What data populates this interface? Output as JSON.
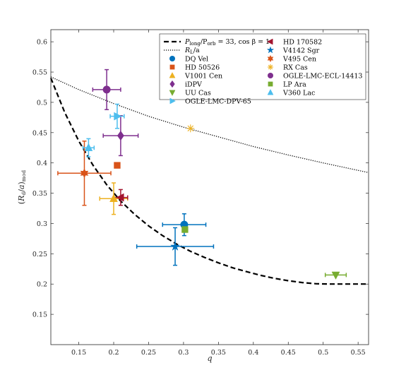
{
  "chart_data": {
    "type": "scatter",
    "xlabel": "q",
    "ylabel": "(R_d/a)_mod",
    "xlim": [
      0.11,
      0.565
    ],
    "ylim": [
      0.1,
      0.62
    ],
    "xticks": [
      0.15,
      0.2,
      0.25,
      0.3,
      0.35,
      0.4,
      0.45,
      0.5,
      0.55
    ],
    "yticks": [
      0.15,
      0.2,
      0.25,
      0.3,
      0.35,
      0.4,
      0.45,
      0.5,
      0.55,
      0.6
    ],
    "grid": false,
    "legend_position": "top-right",
    "curves": [
      {
        "name_main": "P",
        "name_sub1": "long",
        "name_mid": "/P",
        "name_sub2": "orb",
        "name_tail": " = 33, cos β = 1",
        "style": "dashed",
        "color": "#000000",
        "x": [
          0.11,
          0.13,
          0.15,
          0.17,
          0.19,
          0.21,
          0.23,
          0.25,
          0.27,
          0.29,
          0.31,
          0.33,
          0.35,
          0.37,
          0.39,
          0.41,
          0.43,
          0.45,
          0.47,
          0.49,
          0.51,
          0.53,
          0.55,
          0.565
        ],
        "y": [
          0.54,
          0.483,
          0.436,
          0.397,
          0.364,
          0.337,
          0.315,
          0.296,
          0.28,
          0.266,
          0.254,
          0.244,
          0.235,
          0.227,
          0.2205,
          0.2145,
          0.2095,
          0.2055,
          0.2025,
          0.2005,
          0.2,
          0.2,
          0.2,
          0.2
        ]
      },
      {
        "name_main": "R",
        "name_sub1": "L",
        "name_mid": "/a",
        "name_sub2": "",
        "name_tail": "",
        "style": "dotted",
        "color": "#000000",
        "x": [
          0.11,
          0.15,
          0.2,
          0.25,
          0.3,
          0.35,
          0.4,
          0.45,
          0.5,
          0.565
        ],
        "y": [
          0.542,
          0.521,
          0.498,
          0.477,
          0.459,
          0.443,
          0.427,
          0.413,
          0.4,
          0.384
        ]
      }
    ],
    "series": [
      {
        "name": "DQ Vel",
        "marker": "circle",
        "color": "#0072BD",
        "x": 0.301,
        "y": 0.298,
        "xerr": [
          0.031,
          0.031
        ],
        "yerr": [
          0.018,
          0.018
        ]
      },
      {
        "name": "HD 50526",
        "marker": "square",
        "color": "#D95319",
        "x": 0.205,
        "y": 0.396,
        "xerr": [
          0,
          0
        ],
        "yerr": [
          0,
          0
        ]
      },
      {
        "name": "V1001 Cen",
        "marker": "triangle-up",
        "color": "#EDB120",
        "x": 0.2,
        "y": 0.341,
        "xerr": [
          0.02,
          0.02
        ],
        "yerr": [
          0.026,
          0.026
        ]
      },
      {
        "name": "iDPV",
        "marker": "diamond",
        "color": "#7E2F8E",
        "x": 0.21,
        "y": 0.445,
        "xerr": [
          0.025,
          0.025
        ],
        "yerr": [
          0.033,
          0.033
        ]
      },
      {
        "name": "UU Cas",
        "marker": "triangle-down",
        "color": "#77AC30",
        "x": 0.518,
        "y": 0.215,
        "xerr": [
          0.015,
          0.015
        ],
        "yerr": [
          0,
          0
        ]
      },
      {
        "name": "OGLE-LMC-DPV-65",
        "marker": "triangle-right",
        "color": "#4DBEEE",
        "x": 0.205,
        "y": 0.477,
        "xerr": [
          0.01,
          0.01
        ],
        "yerr": [
          0.02,
          0.02
        ]
      },
      {
        "name": "HD 170582",
        "marker": "triangle-left",
        "color": "#A2142F",
        "x": 0.21,
        "y": 0.343,
        "xerr": [
          0.01,
          0.01
        ],
        "yerr": [
          0.013,
          0.013
        ]
      },
      {
        "name": "V4142 Sgr",
        "marker": "star",
        "color": "#0072BD",
        "x": 0.288,
        "y": 0.262,
        "xerr": [
          0.055,
          0.055
        ],
        "yerr": [
          0.031,
          0.031
        ]
      },
      {
        "name": "V495 Cen",
        "marker": "hexagram",
        "color": "#D95319",
        "x": 0.158,
        "y": 0.383,
        "xerr": [
          0.038,
          0.038
        ],
        "yerr": [
          0.053,
          0.053
        ]
      },
      {
        "name": "RX Cas",
        "marker": "asterisk",
        "color": "#EDB120",
        "x": 0.31,
        "y": 0.457,
        "xerr": [
          0,
          0
        ],
        "yerr": [
          0,
          0
        ]
      },
      {
        "name": "OGLE-LMC-ECL-14413",
        "marker": "circle",
        "color": "#7E2F8E",
        "x": 0.19,
        "y": 0.521,
        "xerr": [
          0.02,
          0.02
        ],
        "yerr": [
          0.033,
          0.033
        ]
      },
      {
        "name": "LP Ara",
        "marker": "square",
        "color": "#77AC30",
        "x": 0.302,
        "y": 0.29,
        "xerr": [
          0,
          0
        ],
        "yerr": [
          0,
          0
        ]
      },
      {
        "name": "V360 Lac",
        "marker": "triangle-up",
        "color": "#4DBEEE",
        "x": 0.164,
        "y": 0.425,
        "xerr": [
          0.008,
          0.008
        ],
        "yerr": [
          0.015,
          0.015
        ]
      }
    ]
  }
}
